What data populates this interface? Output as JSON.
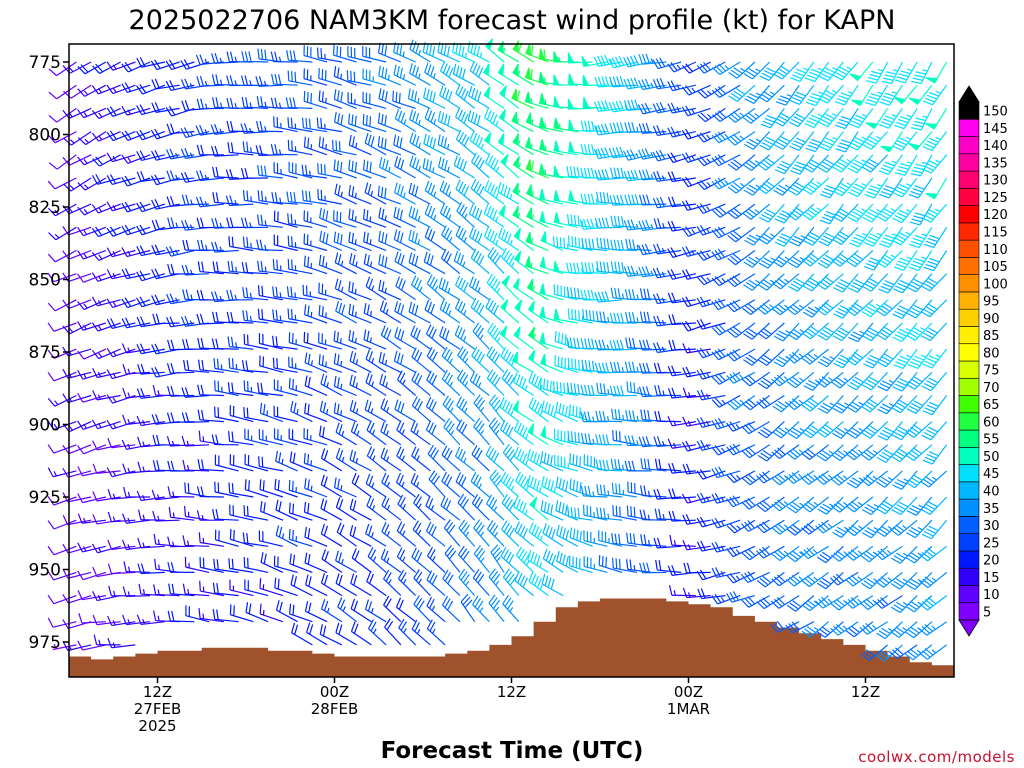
{
  "title": "2025022706 NAM3KM forecast wind profile (kt) for KAPN",
  "credit": "coolwx.com/models",
  "chart_data": {
    "type": "wind-barb time-height profile",
    "title": "2025022706 NAM3KM forecast wind profile (kt) for KAPN",
    "xlabel": "Forecast Time (UTC)",
    "ylabel": "",
    "yticks": [
      775,
      800,
      825,
      850,
      875,
      900,
      925,
      950,
      975
    ],
    "ylim": [
      988,
      770
    ],
    "xlim_hours": [
      0,
      60
    ],
    "xticks": [
      {
        "hour": 6,
        "lines": [
          "12Z",
          "27FEB",
          "2025"
        ]
      },
      {
        "hour": 18,
        "lines": [
          "00Z",
          "28FEB"
        ]
      },
      {
        "hour": 30,
        "lines": [
          "12Z"
        ]
      },
      {
        "hour": 42,
        "lines": [
          "00Z",
          "1MAR"
        ]
      },
      {
        "hour": 54,
        "lines": [
          "12Z"
        ]
      }
    ],
    "colorbar": {
      "unit": "kt",
      "levels": [
        5,
        10,
        15,
        20,
        25,
        30,
        35,
        40,
        45,
        50,
        55,
        60,
        65,
        70,
        75,
        80,
        85,
        90,
        95,
        100,
        105,
        110,
        115,
        120,
        125,
        130,
        135,
        140,
        145,
        150
      ],
      "colors": [
        "#7f00ff",
        "#6000ff",
        "#3000ff",
        "#0018ff",
        "#0040ff",
        "#0060ff",
        "#0090ff",
        "#00b8ff",
        "#00e0ff",
        "#00ffc0",
        "#00ff80",
        "#20ff40",
        "#40ff00",
        "#a0ff00",
        "#d8ff00",
        "#ffff00",
        "#ffee00",
        "#ffd000",
        "#ffb000",
        "#ff9000",
        "#ff7000",
        "#ff5000",
        "#ff2800",
        "#ff0000",
        "#ff0040",
        "#ff0070",
        "#ff00a0",
        "#ff00c8",
        "#ff00ee",
        "#000000"
      ]
    },
    "terrain": {
      "color": "#a0522d",
      "hours": [
        0,
        1.5,
        3,
        4.5,
        6,
        7.5,
        9,
        10.5,
        12,
        13.5,
        15,
        16.5,
        18,
        19.5,
        21,
        22.5,
        24,
        25.5,
        27,
        28.5,
        30,
        31.5,
        33,
        34.5,
        36,
        37.5,
        39,
        40.5,
        42,
        43.5,
        45,
        46.5,
        48,
        49.5,
        51,
        52.5,
        54,
        55.5,
        57,
        58.5,
        60
      ],
      "pressure": [
        980,
        981,
        980,
        979,
        978,
        978,
        977,
        977,
        977,
        978,
        978,
        979,
        980,
        980,
        980,
        980,
        980,
        979,
        978,
        976,
        973,
        968,
        963,
        961,
        960,
        960,
        960,
        961,
        962,
        963,
        966,
        968,
        970,
        972,
        974,
        976,
        978,
        980,
        982,
        983,
        984
      ]
    },
    "wind_barbs": {
      "hours_start": 0.5,
      "hours_step": 1,
      "count": 60,
      "pressure_levels": [
        775,
        783,
        791,
        799,
        807,
        815,
        824,
        832,
        840,
        848,
        857,
        865,
        874,
        882,
        890,
        899,
        907,
        916,
        925,
        933,
        942,
        951,
        959,
        968,
        976,
        983
      ],
      "direction_from_deg_by_hour": [
        [
          0,
          245
        ],
        [
          10,
          270
        ],
        [
          22,
          300
        ],
        [
          30,
          315
        ],
        [
          36,
          275
        ],
        [
          40,
          270
        ],
        [
          43,
          260
        ],
        [
          48,
          230
        ],
        [
          60,
          220
        ]
      ],
      "speed_kt_by_hour": [
        [
          0,
          12
        ],
        [
          10,
          22
        ],
        [
          22,
          28
        ],
        [
          28,
          38
        ],
        [
          32,
          55
        ],
        [
          36,
          45
        ],
        [
          40,
          35
        ],
        [
          43,
          18
        ],
        [
          46,
          32
        ],
        [
          52,
          40
        ],
        [
          60,
          44
        ]
      ]
    }
  }
}
